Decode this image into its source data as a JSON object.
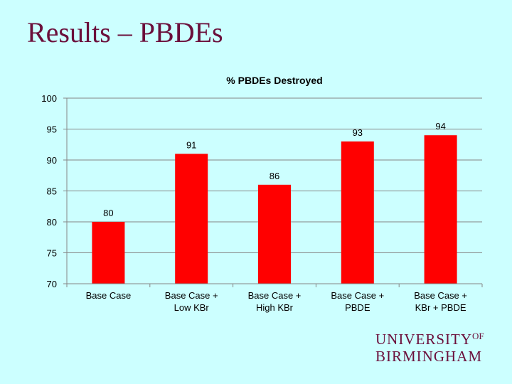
{
  "slide": {
    "title": "Results – PBDEs"
  },
  "logo": {
    "line1": "UNIVERSITY",
    "of": "OF",
    "line2": "BIRMINGHAM"
  },
  "colors": {
    "background": "#ccffff",
    "title": "#6b0f3b",
    "bar": "#ff0000"
  },
  "chart_data": {
    "type": "bar",
    "title": "% PBDEs Destroyed",
    "xlabel": "",
    "ylabel": "",
    "categories": [
      [
        "Base Case"
      ],
      [
        "Base Case +",
        "Low KBr"
      ],
      [
        "Base Case +",
        "High KBr"
      ],
      [
        "Base Case +",
        "PBDE"
      ],
      [
        "Base Case +",
        "KBr + PBDE"
      ]
    ],
    "values": [
      80,
      91,
      86,
      93,
      94
    ],
    "ylim": [
      70,
      100
    ],
    "yticks": [
      70,
      75,
      80,
      85,
      90,
      95,
      100
    ],
    "grid": true,
    "legend": "none",
    "data_labels": true
  }
}
